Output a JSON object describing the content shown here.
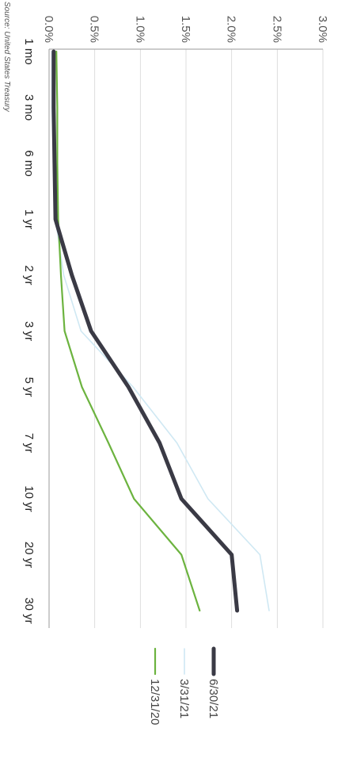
{
  "chart_data": {
    "type": "line",
    "orientation": "rotated-90-clockwise",
    "categories": [
      "1 mo",
      "3 mo",
      "6 mo",
      "1 yr",
      "2 yr",
      "3 yr",
      "5 yr",
      "7 yr",
      "10 yr",
      "20 yr",
      "30 yr"
    ],
    "series": [
      {
        "name": "12/31/20",
        "color": "#6cb33f",
        "values": [
          0.08,
          0.09,
          0.09,
          0.1,
          0.13,
          0.17,
          0.36,
          0.65,
          0.93,
          1.45,
          1.65
        ]
      },
      {
        "name": "3/31/21",
        "color": "#cfe8f3",
        "values": [
          0.03,
          0.03,
          0.05,
          0.07,
          0.16,
          0.35,
          0.92,
          1.4,
          1.74,
          2.31,
          2.41
        ]
      },
      {
        "name": "6/30/21",
        "color": "#3a3a45",
        "values": [
          0.05,
          0.05,
          0.06,
          0.07,
          0.25,
          0.46,
          0.87,
          1.21,
          1.45,
          2.0,
          2.06
        ]
      }
    ],
    "ylim": [
      0,
      3
    ],
    "yticks": [
      "0.0%",
      "0.5%",
      "1.0%",
      "1.5%",
      "2.0%",
      "2.5%",
      "3.0%"
    ],
    "grid": true,
    "legend_position": "right",
    "source": "Source: United States Treasury"
  }
}
